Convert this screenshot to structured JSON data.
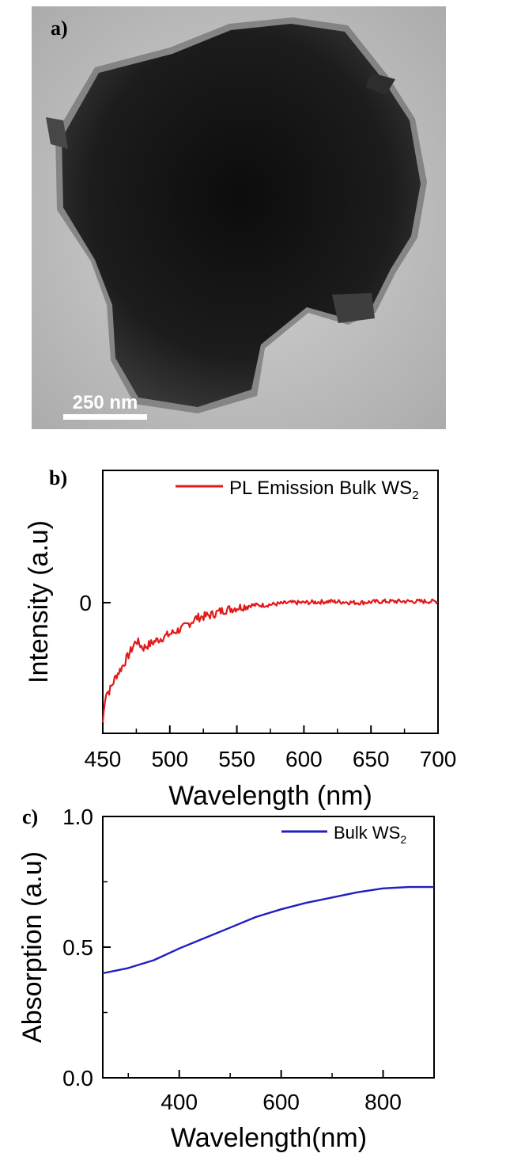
{
  "panel_a": {
    "label": "a)",
    "scale_bar_label": "250 nm"
  },
  "chart_data": [
    {
      "panel_label": "b)",
      "type": "line",
      "xlabel": "Wavelength (nm)",
      "ylabel": "Intensity (a.u)",
      "xlim": [
        450,
        700
      ],
      "x_ticks": [
        450,
        500,
        550,
        600,
        650,
        700
      ],
      "y_ticks": [
        {
          "value": 0,
          "label": "0"
        }
      ],
      "ylim_relative": [
        -1.0,
        1.0
      ],
      "legend": {
        "text": "PL Emission Bulk WS",
        "subscript": "2",
        "position": "top-right"
      },
      "grid": false,
      "series": [
        {
          "name": "PL Emission Bulk WS2",
          "color": "#e31a1c",
          "x": [
            450,
            452,
            455,
            460,
            465,
            470,
            475,
            480,
            490,
            500,
            510,
            520,
            530,
            540,
            550,
            560,
            570,
            580,
            590,
            600,
            620,
            640,
            660,
            680,
            700
          ],
          "y": [
            -0.95,
            -0.72,
            -0.7,
            -0.58,
            -0.5,
            -0.4,
            -0.3,
            -0.36,
            -0.3,
            -0.25,
            -0.2,
            -0.12,
            -0.1,
            -0.06,
            -0.04,
            -0.02,
            -0.02,
            -0.01,
            0.0,
            0.0,
            0.01,
            0.0,
            0.01,
            0.01,
            0.01
          ]
        }
      ]
    },
    {
      "panel_label": "c)",
      "type": "line",
      "xlabel": "Wavelength(nm)",
      "ylabel": "Absorption (a.u)",
      "xlim": [
        250,
        900
      ],
      "ylim": [
        0.0,
        1.0
      ],
      "x_ticks": [
        400,
        600,
        800
      ],
      "y_ticks": [
        {
          "value": 0.0,
          "label": "0.0"
        },
        {
          "value": 0.5,
          "label": "0.5"
        },
        {
          "value": 1.0,
          "label": "1.0"
        }
      ],
      "legend": {
        "text": "Bulk WS",
        "subscript": "2",
        "position": "top-right"
      },
      "grid": false,
      "series": [
        {
          "name": "Bulk WS2",
          "color": "#1f1fbf",
          "x": [
            250,
            300,
            350,
            400,
            450,
            500,
            550,
            600,
            650,
            700,
            750,
            800,
            850,
            900
          ],
          "y": [
            0.4,
            0.42,
            0.45,
            0.495,
            0.535,
            0.575,
            0.615,
            0.645,
            0.67,
            0.69,
            0.71,
            0.725,
            0.73,
            0.73
          ]
        }
      ]
    }
  ]
}
